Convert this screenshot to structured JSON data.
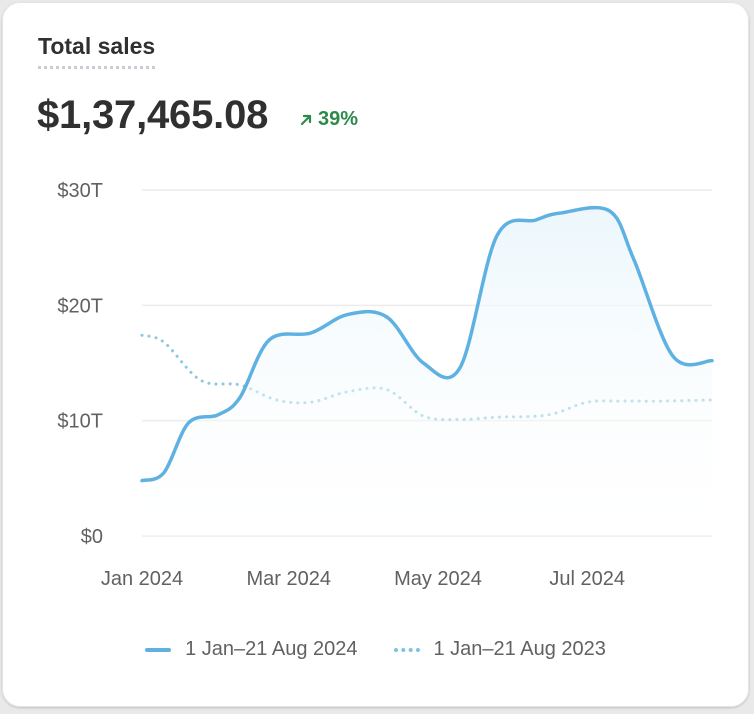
{
  "card": {
    "title": "Total sales",
    "total": "$1,37,465.08",
    "change": "39%",
    "change_direction": "up",
    "change_color": "#2e8a4a"
  },
  "colors": {
    "current_series": "#5fb1e2",
    "previous_series": "#8cc9e0",
    "area_fill": "#eaf6fc",
    "gridline": "#ececec"
  },
  "chart_data": {
    "type": "line",
    "title": "",
    "xlabel": "",
    "ylabel": "",
    "ylim": [
      0,
      30
    ],
    "y_ticks": [
      {
        "value": 30,
        "label": "$30T"
      },
      {
        "value": 20,
        "label": "$20T"
      },
      {
        "value": 10,
        "label": "$10T"
      },
      {
        "value": 0,
        "label": "$0"
      }
    ],
    "x_ticks": [
      {
        "value": "2024-01-01",
        "label": "Jan 2024"
      },
      {
        "value": "2024-03-01",
        "label": "Mar 2024"
      },
      {
        "value": "2024-05-01",
        "label": "May 2024"
      },
      {
        "value": "2024-07-01",
        "label": "Jul 2024"
      }
    ],
    "xlim": [
      "2024-01-01",
      "2024-08-21"
    ],
    "grid": true,
    "legend_position": "bottom",
    "series": [
      {
        "name": "1 Jan–21 Aug 2024",
        "style": "solid",
        "filled": true,
        "points": [
          {
            "date": "2024-01-01",
            "value": 4.8
          },
          {
            "date": "2024-01-10",
            "value": 5.5
          },
          {
            "date": "2024-01-20",
            "value": 9.8
          },
          {
            "date": "2024-02-01",
            "value": 10.5
          },
          {
            "date": "2024-02-10",
            "value": 12
          },
          {
            "date": "2024-02-22",
            "value": 17
          },
          {
            "date": "2024-03-10",
            "value": 17.6
          },
          {
            "date": "2024-03-25",
            "value": 19.2
          },
          {
            "date": "2024-04-10",
            "value": 19
          },
          {
            "date": "2024-04-25",
            "value": 15
          },
          {
            "date": "2024-05-10",
            "value": 14.6
          },
          {
            "date": "2024-05-25",
            "value": 26
          },
          {
            "date": "2024-06-10",
            "value": 27.4
          },
          {
            "date": "2024-06-20",
            "value": 28
          },
          {
            "date": "2024-07-10",
            "value": 28.2
          },
          {
            "date": "2024-07-20",
            "value": 24
          },
          {
            "date": "2024-08-05",
            "value": 15.6
          },
          {
            "date": "2024-08-21",
            "value": 15.2
          }
        ]
      },
      {
        "name": "1 Jan–21 Aug 2023",
        "style": "dotted",
        "filled": false,
        "points": [
          {
            "date": "2024-01-01",
            "value": 17.4
          },
          {
            "date": "2024-01-10",
            "value": 16.8
          },
          {
            "date": "2024-01-25",
            "value": 13.5
          },
          {
            "date": "2024-02-10",
            "value": 13.1
          },
          {
            "date": "2024-02-25",
            "value": 11.8
          },
          {
            "date": "2024-03-10",
            "value": 11.6
          },
          {
            "date": "2024-03-25",
            "value": 12.5
          },
          {
            "date": "2024-04-10",
            "value": 12.7
          },
          {
            "date": "2024-04-25",
            "value": 10.4
          },
          {
            "date": "2024-05-10",
            "value": 10.1
          },
          {
            "date": "2024-05-25",
            "value": 10.3
          },
          {
            "date": "2024-06-15",
            "value": 10.5
          },
          {
            "date": "2024-07-01",
            "value": 11.6
          },
          {
            "date": "2024-07-15",
            "value": 11.7
          },
          {
            "date": "2024-08-01",
            "value": 11.7
          },
          {
            "date": "2024-08-21",
            "value": 11.8
          }
        ]
      }
    ]
  }
}
